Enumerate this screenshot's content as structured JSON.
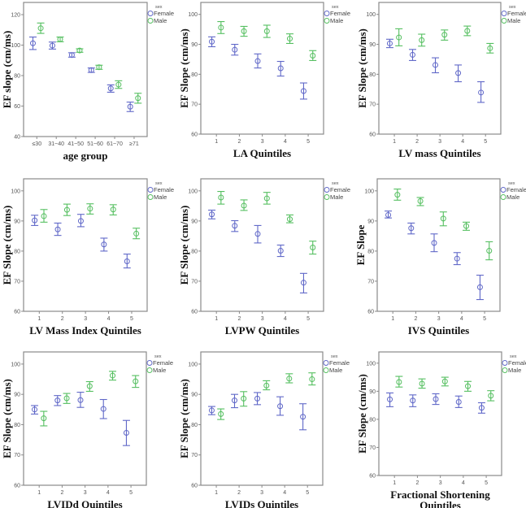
{
  "figure": {
    "legend": {
      "title": "sex",
      "entries": [
        {
          "label": "Female",
          "color": "#6068c8"
        },
        {
          "label": "Male",
          "color": "#55bf60"
        }
      ]
    }
  },
  "chart_data": [
    {
      "type": "scatter",
      "subtype": "error-bar",
      "title": "",
      "xlabel": "age group",
      "ylabel": "EF slope (cm/ms)",
      "categories": [
        "≤30",
        "31~40",
        "41~50",
        "51~60",
        "61~70",
        "≥71"
      ],
      "ylim": [
        40,
        128
      ],
      "yticks": [
        40,
        60,
        80,
        100,
        120
      ],
      "grid": false,
      "legend_position": "right-top",
      "series": [
        {
          "name": "Female",
          "values": [
            101.2,
            99.7,
            93.5,
            83.6,
            71.6,
            59.6
          ],
          "lower": [
            97.1,
            97.4,
            92.1,
            82.1,
            69.1,
            56.4
          ],
          "upper": [
            105.3,
            102.0,
            95.0,
            85.0,
            73.9,
            62.6
          ]
        },
        {
          "name": "Male",
          "values": [
            111.1,
            103.8,
            96.5,
            85.5,
            74.1,
            65.2
          ],
          "lower": [
            107.7,
            102.2,
            95.3,
            84.1,
            71.6,
            61.9
          ],
          "upper": [
            114.5,
            105.3,
            97.6,
            86.8,
            76.6,
            68.4
          ]
        }
      ]
    },
    {
      "type": "scatter",
      "subtype": "error-bar",
      "title": "",
      "xlabel": "LA Quintiles",
      "ylabel": "EF Slope (cm/ms)",
      "categories": [
        "1",
        "2",
        "3",
        "4",
        "5"
      ],
      "ylim": [
        60,
        104
      ],
      "yticks": [
        60,
        70,
        80,
        90,
        100
      ],
      "grid": false,
      "legend_position": "right-top",
      "series": [
        {
          "name": "Female",
          "values": [
            90.9,
            88.2,
            84.4,
            82.0,
            74.4
          ],
          "lower": [
            89.2,
            86.4,
            82.1,
            79.4,
            71.7
          ],
          "upper": [
            92.5,
            90.0,
            86.8,
            84.3,
            77.1
          ]
        },
        {
          "name": "Male",
          "values": [
            95.6,
            94.4,
            94.4,
            91.9,
            86.2
          ],
          "lower": [
            93.6,
            92.7,
            92.3,
            90.3,
            84.6
          ],
          "upper": [
            97.6,
            96.0,
            96.4,
            93.5,
            87.9
          ]
        }
      ]
    },
    {
      "type": "scatter",
      "subtype": "error-bar",
      "title": "",
      "xlabel": "LV mass Quintiles",
      "ylabel": "EF Slope (cm/ms)",
      "categories": [
        "1",
        "2",
        "3",
        "4",
        "5"
      ],
      "ylim": [
        60,
        104
      ],
      "yticks": [
        60,
        70,
        80,
        90,
        100
      ],
      "grid": false,
      "legend_position": "right-top",
      "series": [
        {
          "name": "Female",
          "values": [
            90.3,
            86.5,
            83.1,
            80.4,
            73.9
          ],
          "lower": [
            88.9,
            84.6,
            80.5,
            77.5,
            70.6
          ],
          "upper": [
            91.7,
            88.3,
            85.5,
            83.1,
            77.5
          ]
        },
        {
          "name": "Male",
          "values": [
            92.3,
            91.4,
            93.2,
            94.5,
            88.7
          ],
          "lower": [
            89.5,
            89.4,
            91.4,
            92.9,
            87.1
          ],
          "upper": [
            95.2,
            93.4,
            94.8,
            96.1,
            90.3
          ]
        }
      ]
    },
    {
      "type": "scatter",
      "subtype": "error-bar",
      "title": "",
      "xlabel": "LV Mass Index Quintiles",
      "ylabel": "EF Slope (cm/ms)",
      "categories": [
        "1",
        "2",
        "3",
        "4",
        "5"
      ],
      "ylim": [
        60,
        104
      ],
      "yticks": [
        60,
        70,
        80,
        90,
        100
      ],
      "grid": false,
      "legend_position": "right-top",
      "series": [
        {
          "name": "Female",
          "values": [
            90.2,
            87.2,
            90.0,
            82.2,
            76.6
          ],
          "lower": [
            88.5,
            85.2,
            88.1,
            80.0,
            74.4
          ],
          "upper": [
            91.9,
            89.3,
            92.2,
            84.3,
            79.0
          ]
        },
        {
          "name": "Male",
          "values": [
            91.6,
            93.7,
            94.1,
            93.8,
            85.8
          ],
          "lower": [
            89.6,
            91.8,
            92.3,
            92.0,
            84.1
          ],
          "upper": [
            93.8,
            95.6,
            95.7,
            95.4,
            87.6
          ]
        }
      ]
    },
    {
      "type": "scatter",
      "subtype": "error-bar",
      "title": "",
      "xlabel": "LVPW Quintiles",
      "ylabel": "EF Slope (cm/ms)",
      "categories": [
        "1",
        "2",
        "3",
        "4",
        "5"
      ],
      "ylim": [
        60,
        104
      ],
      "yticks": [
        60,
        70,
        80,
        90,
        100
      ],
      "grid": false,
      "legend_position": "right-top",
      "series": [
        {
          "name": "Female",
          "values": [
            92.2,
            88.4,
            85.7,
            80.1,
            69.5
          ],
          "lower": [
            90.7,
            86.5,
            82.7,
            78.2,
            66.1
          ],
          "upper": [
            93.6,
            90.1,
            88.5,
            82.0,
            72.6
          ]
        },
        {
          "name": "Male",
          "values": [
            97.8,
            95.1,
            97.5,
            90.6,
            81.2
          ],
          "lower": [
            95.6,
            93.5,
            95.6,
            89.4,
            79.0
          ],
          "upper": [
            99.8,
            97.0,
            99.5,
            92.0,
            83.3
          ]
        }
      ]
    },
    {
      "type": "scatter",
      "subtype": "error-bar",
      "title": "",
      "xlabel": "IVS Quintiles",
      "ylabel": "EF Slope",
      "categories": [
        "1",
        "2",
        "3",
        "4",
        "5"
      ],
      "ylim": [
        60,
        104
      ],
      "yticks": [
        60,
        70,
        80,
        90,
        100
      ],
      "grid": false,
      "legend_position": "right-top",
      "series": [
        {
          "name": "Female",
          "values": [
            92.0,
            87.6,
            82.7,
            77.5,
            68.0
          ],
          "lower": [
            91.0,
            85.7,
            79.8,
            75.5,
            63.9
          ],
          "upper": [
            93.3,
            89.3,
            85.7,
            79.5,
            72.0
          ]
        },
        {
          "name": "Male",
          "values": [
            98.7,
            96.6,
            90.8,
            88.3,
            80.1
          ],
          "lower": [
            96.9,
            95.1,
            88.4,
            86.9,
            77.1
          ],
          "upper": [
            100.6,
            97.8,
            93.0,
            89.6,
            83.1
          ]
        }
      ]
    },
    {
      "type": "scatter",
      "subtype": "error-bar",
      "title": "",
      "xlabel": "LVIDd Quintiles",
      "ylabel": "EF Slope (cm/ms)",
      "categories": [
        "1",
        "2",
        "3",
        "4",
        "5"
      ],
      "ylim": [
        60,
        104
      ],
      "yticks": [
        60,
        70,
        80,
        90,
        100
      ],
      "grid": false,
      "legend_position": "right-top",
      "series": [
        {
          "name": "Female",
          "values": [
            85.0,
            88.0,
            88.1,
            85.2,
            77.3
          ],
          "lower": [
            83.5,
            86.3,
            85.7,
            82.0,
            73.1
          ],
          "upper": [
            86.3,
            89.6,
            90.7,
            88.3,
            81.4
          ]
        },
        {
          "name": "Male",
          "values": [
            82.1,
            88.7,
            92.7,
            96.2,
            94.3
          ],
          "lower": [
            79.6,
            87.0,
            91.0,
            94.7,
            92.3
          ],
          "upper": [
            84.4,
            90.3,
            94.2,
            97.6,
            96.2
          ]
        }
      ]
    },
    {
      "type": "scatter",
      "subtype": "error-bar",
      "title": "",
      "xlabel": "LVIDs Quintiles",
      "ylabel": "EF Slope (cm/ms)",
      "categories": [
        "1",
        "2",
        "3",
        "4",
        "5"
      ],
      "ylim": [
        60,
        104
      ],
      "yticks": [
        60,
        70,
        80,
        90,
        100
      ],
      "grid": false,
      "legend_position": "right-top",
      "series": [
        {
          "name": "Female",
          "values": [
            84.7,
            88.0,
            88.6,
            86.1,
            82.6
          ],
          "lower": [
            83.3,
            85.6,
            86.6,
            83.1,
            78.3
          ],
          "upper": [
            86.0,
            90.0,
            90.6,
            89.2,
            86.9
          ]
        },
        {
          "name": "Male",
          "values": [
            83.5,
            88.6,
            92.9,
            95.2,
            95.0
          ],
          "lower": [
            81.7,
            86.1,
            91.5,
            93.8,
            93.1
          ],
          "upper": [
            85.2,
            90.9,
            94.5,
            96.8,
            97.1
          ]
        }
      ]
    },
    {
      "type": "scatter",
      "subtype": "error-bar",
      "title": "",
      "xlabel": "Fractional Shortening Quintiles",
      "xlabel_lines": [
        "Fractional Shortening",
        "Quintiles"
      ],
      "ylabel": "EF Slope (cm/ms)",
      "categories": [
        "1",
        "2",
        "3",
        "4",
        "5"
      ],
      "ylim": [
        60,
        104
      ],
      "yticks": [
        60,
        70,
        80,
        90,
        100
      ],
      "grid": false,
      "legend_position": "right-top",
      "series": [
        {
          "name": "Female",
          "values": [
            87.1,
            86.7,
            87.2,
            86.2,
            84.1
          ],
          "lower": [
            84.5,
            84.5,
            85.3,
            84.2,
            82.2
          ],
          "upper": [
            89.4,
            88.7,
            89.1,
            88.3,
            85.9
          ]
        },
        {
          "name": "Male",
          "values": [
            93.3,
            92.7,
            93.5,
            91.8,
            88.4
          ],
          "lower": [
            91.5,
            91.1,
            91.9,
            90.0,
            86.6
          ],
          "upper": [
            95.3,
            94.4,
            95.0,
            93.5,
            90.2
          ]
        }
      ]
    }
  ]
}
